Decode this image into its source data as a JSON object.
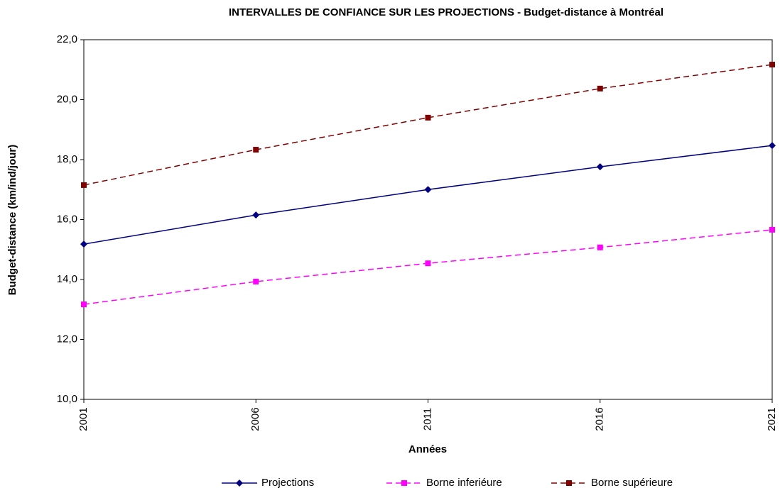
{
  "chart_data": {
    "type": "line",
    "title": "INTERVALLES DE CONFIANCE SUR LES PROJECTIONS - Budget-distance à Montréal",
    "x_label": "Années",
    "y_label": "Budget-distance (km/ind/jour)",
    "x": [
      2001,
      2006,
      2011,
      2016,
      2021
    ],
    "xlim": [
      2001,
      2021
    ],
    "xticks": [
      2001,
      2006,
      2011,
      2016,
      2021
    ],
    "ylim": [
      10,
      22
    ],
    "yticks": [
      {
        "value": 10,
        "label": "10,0"
      },
      {
        "value": 12,
        "label": "12,0"
      },
      {
        "value": 14,
        "label": "14,0"
      },
      {
        "value": 16,
        "label": "16,0"
      },
      {
        "value": 18,
        "label": "18,0"
      },
      {
        "value": 20,
        "label": "20,0"
      },
      {
        "value": 22,
        "label": "22,0"
      }
    ],
    "legend": "bottom",
    "series": [
      {
        "name": "Projections",
        "color": "#000080",
        "dash": false,
        "marker": "diamond",
        "values": [
          15.18,
          16.15,
          17.0,
          17.76,
          18.47
        ]
      },
      {
        "name": "Borne inferiéure",
        "color": "#ff00ff",
        "dash": true,
        "marker": "square",
        "values": [
          13.17,
          13.93,
          14.54,
          15.07,
          15.66
        ]
      },
      {
        "name": "Borne supérieure",
        "color": "#800000",
        "dash": true,
        "marker": "square",
        "values": [
          17.15,
          18.33,
          19.4,
          20.37,
          21.17
        ]
      }
    ]
  }
}
